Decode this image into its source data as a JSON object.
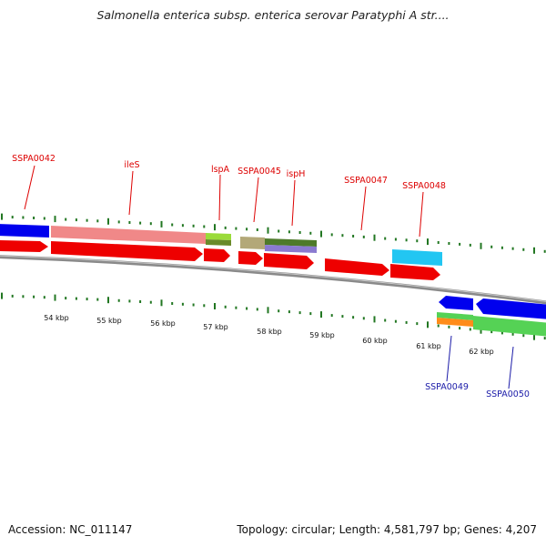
{
  "title": "Salmonella enterica subsp. enterica serovar Paratyphi A str....",
  "footer": {
    "accession": "Accession: NC_011147",
    "stats": "Topology: circular; Length: 4,581,797 bp; Genes: 4,207"
  },
  "colors": {
    "label_top": "#dd0000",
    "label_bottom": "#1a1aa8",
    "tick": "#227722",
    "backbone": "#8a8a8a",
    "cds": "#ee0000",
    "blue_gene": "#0000ee",
    "pink_gene": "#f08888",
    "lime_gene": "#9adb3a",
    "olive_gene": "#b3a878",
    "green_gene": "#4e7a2a",
    "purple_gene": "#8a7ad0",
    "cyan_gene": "#22c6f2",
    "light_green_gene": "#55d255",
    "orange_gene": "#ff8c1a"
  },
  "top_labels": [
    "SSPA0042",
    "ileS",
    "lspA",
    "SSPA0045",
    "ispH",
    "SSPA0047",
    "SSPA0048"
  ],
  "bottom_labels": [
    "SSPA0049",
    "SSPA0050"
  ],
  "kbp_labels": [
    "54 kbp",
    "55 kbp",
    "56 kbp",
    "57 kbp",
    "58 kbp",
    "59 kbp",
    "60 kbp",
    "61 kbp",
    "62 kbp"
  ]
}
